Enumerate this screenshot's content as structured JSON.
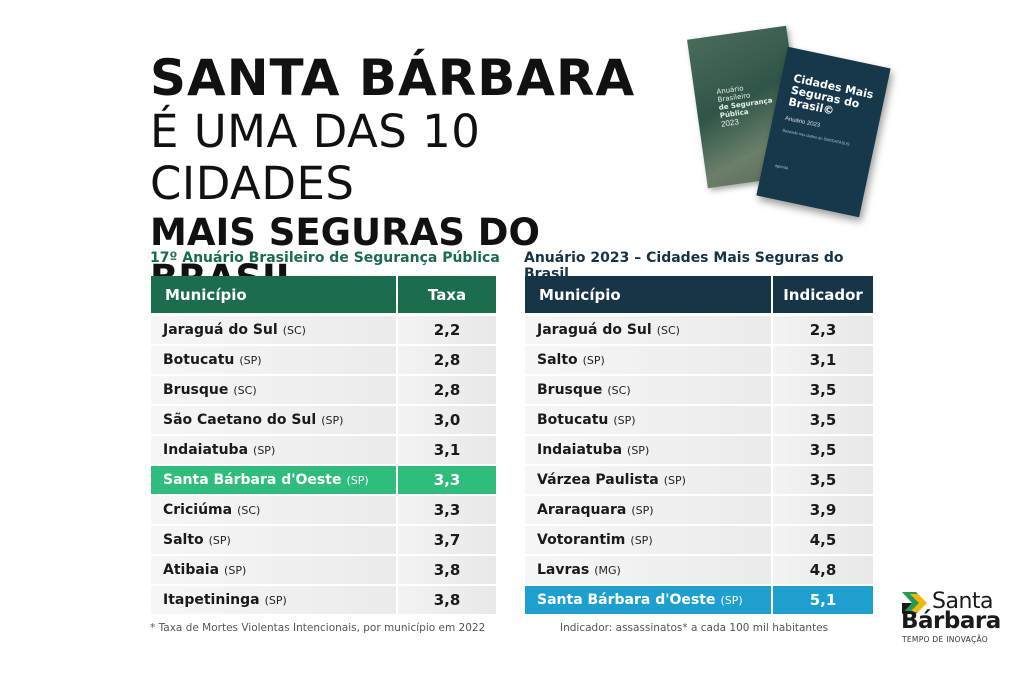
{
  "headline": {
    "line1": "SANTA BÁRBARA",
    "line2": "É UMA DAS 10 CIDADES",
    "line3": "MAIS SEGURAS DO BRASIL"
  },
  "books": {
    "back": {
      "title1": "Anuário",
      "title2": "Brasileiro",
      "title3": "de Segurança",
      "title4": "Pública",
      "year": "2023"
    },
    "front": {
      "title": "Cidades Mais Seguras do Brasil©",
      "subtitle": "Anuário 2023",
      "small": "Baseado nas dados do SIM/DATASUS",
      "footer": "agenda"
    }
  },
  "left_table": {
    "title": "17º Anuário Brasileiro de Segurança Pública",
    "col1": "Município",
    "col2": "Taxa",
    "rows": [
      {
        "city": "Jaraguá do Sul",
        "state": "(SC)",
        "value": "2,2"
      },
      {
        "city": "Botucatu",
        "state": "(SP)",
        "value": "2,8"
      },
      {
        "city": "Brusque",
        "state": "(SC)",
        "value": "2,8"
      },
      {
        "city": "São Caetano do Sul",
        "state": "(SP)",
        "value": "3,0"
      },
      {
        "city": "Indaiatuba",
        "state": "(SP)",
        "value": "3,1"
      },
      {
        "city": "Santa Bárbara d'Oeste",
        "state": "(SP)",
        "value": "3,3"
      },
      {
        "city": "Criciúma",
        "state": "(SC)",
        "value": "3,3"
      },
      {
        "city": "Salto",
        "state": "(SP)",
        "value": "3,7"
      },
      {
        "city": "Atibaia",
        "state": "(SP)",
        "value": "3,8"
      },
      {
        "city": "Itapetininga",
        "state": "(SP)",
        "value": "3,8"
      }
    ],
    "footnote": "* Taxa de Mortes Violentas Intencionais, por município em 2022"
  },
  "right_table": {
    "title": "Anuário 2023 – Cidades Mais Seguras do Brasil",
    "col1": "Município",
    "col2": "Indicador",
    "rows": [
      {
        "city": "Jaraguá do Sul",
        "state": "(SC)",
        "value": "2,3"
      },
      {
        "city": "Salto",
        "state": "(SP)",
        "value": "3,1"
      },
      {
        "city": "Brusque",
        "state": "(SC)",
        "value": "3,5"
      },
      {
        "city": "Botucatu",
        "state": "(SP)",
        "value": "3,5"
      },
      {
        "city": "Indaiatuba",
        "state": "(SP)",
        "value": "3,5"
      },
      {
        "city": "Várzea Paulista",
        "state": "(SP)",
        "value": "3,5"
      },
      {
        "city": "Araraquara",
        "state": "(SP)",
        "value": "3,9"
      },
      {
        "city": "Votorantim",
        "state": "(SP)",
        "value": "4,5"
      },
      {
        "city": "Lavras",
        "state": "(MG)",
        "value": "4,8"
      },
      {
        "city": "Santa Bárbara d'Oeste",
        "state": "(SP)",
        "value": "5,1"
      }
    ],
    "footnote": "Indicador: assassinatos* a cada 100 mil habitantes"
  },
  "logo": {
    "line1": "Santa",
    "line2": "Bárbara",
    "tagline": "TEMPO DE INOVAÇÃO"
  },
  "colors": {
    "left_header": "#1b6d4e",
    "right_header": "#183548",
    "highlight_green": "#2fbd7c",
    "highlight_blue": "#1f9ed0"
  }
}
